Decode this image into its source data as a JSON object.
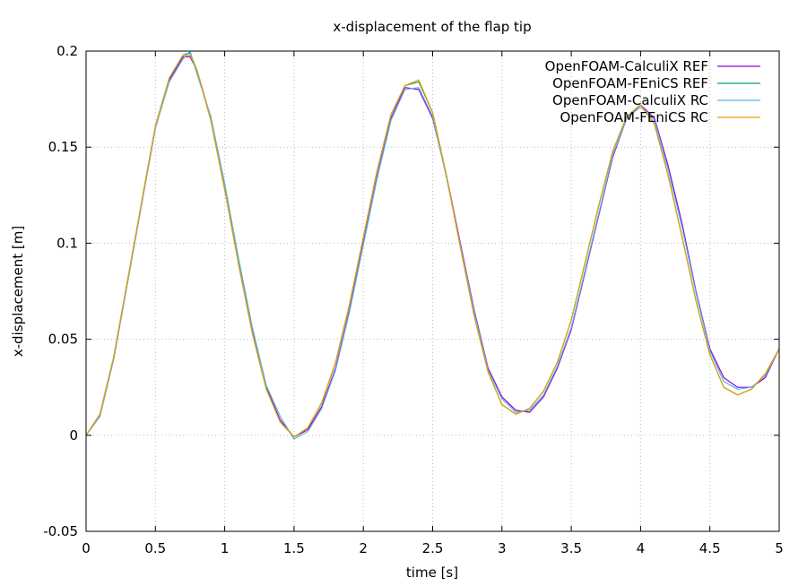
{
  "chart_data": {
    "type": "line",
    "title": "x-displacement of the flap tip",
    "xlabel": "time [s]",
    "ylabel": "x-displacement [m]",
    "xlim": [
      0,
      5
    ],
    "ylim": [
      -0.05,
      0.2
    ],
    "xticks": [
      0,
      0.5,
      1,
      1.5,
      2,
      2.5,
      3,
      3.5,
      4,
      4.5,
      5
    ],
    "xtick_labels": [
      "0",
      "0.5",
      "1",
      "1.5",
      "2",
      "2.5",
      "3",
      "3.5",
      "4",
      "4.5",
      "5"
    ],
    "yticks": [
      -0.05,
      0,
      0.05,
      0.1,
      0.15,
      0.2
    ],
    "ytick_labels": [
      "-0.05",
      "0",
      "0.05",
      "0.1",
      "0.15",
      "0.2"
    ],
    "grid": true,
    "legend_position": "top-right",
    "series": [
      {
        "name": "OpenFOAM-CalculiX REF",
        "color": "#9400d3",
        "x": [
          0,
          0.1,
          0.2,
          0.3,
          0.4,
          0.5,
          0.6,
          0.7,
          0.75,
          0.8,
          0.9,
          1.0,
          1.1,
          1.2,
          1.3,
          1.4,
          1.5,
          1.6,
          1.7,
          1.8,
          1.9,
          2.0,
          2.1,
          2.2,
          2.3,
          2.4,
          2.5,
          2.6,
          2.7,
          2.8,
          2.9,
          3.0,
          3.1,
          3.2,
          3.3,
          3.4,
          3.5,
          3.6,
          3.7,
          3.8,
          3.9,
          4.0,
          4.1,
          4.2,
          4.3,
          4.4,
          4.5,
          4.6,
          4.7,
          4.8,
          4.9,
          5.0
        ],
        "y": [
          0.0,
          0.01,
          0.04,
          0.08,
          0.12,
          0.16,
          0.185,
          0.197,
          0.197,
          0.19,
          0.165,
          0.13,
          0.09,
          0.055,
          0.025,
          0.008,
          -0.001,
          0.003,
          0.015,
          0.035,
          0.065,
          0.1,
          0.135,
          0.165,
          0.181,
          0.18,
          0.165,
          0.135,
          0.1,
          0.065,
          0.035,
          0.02,
          0.013,
          0.012,
          0.02,
          0.035,
          0.055,
          0.085,
          0.115,
          0.145,
          0.165,
          0.172,
          0.165,
          0.14,
          0.11,
          0.075,
          0.045,
          0.03,
          0.025,
          0.025,
          0.03,
          0.045
        ]
      },
      {
        "name": "OpenFOAM-FEniCS REF",
        "color": "#009e73",
        "x": [
          0,
          0.1,
          0.2,
          0.3,
          0.4,
          0.5,
          0.6,
          0.7,
          0.75,
          0.8,
          0.9,
          1.0,
          1.1,
          1.2,
          1.3,
          1.4,
          1.5,
          1.6,
          1.7,
          1.8,
          1.9,
          2.0,
          2.1,
          2.2,
          2.3,
          2.4,
          2.5,
          2.6,
          2.7,
          2.8,
          2.9,
          3.0,
          3.1,
          3.2,
          3.3,
          3.4,
          3.5,
          3.6,
          3.7,
          3.8,
          3.9,
          4.0,
          4.1,
          4.2,
          4.3,
          4.4,
          4.5,
          4.6,
          4.7,
          4.8,
          4.9,
          5.0
        ],
        "y": [
          0.0,
          0.011,
          0.041,
          0.081,
          0.121,
          0.161,
          0.186,
          0.198,
          0.199,
          0.19,
          0.164,
          0.128,
          0.089,
          0.053,
          0.024,
          0.007,
          -0.001,
          0.004,
          0.017,
          0.038,
          0.068,
          0.103,
          0.138,
          0.167,
          0.182,
          0.184,
          0.168,
          0.135,
          0.098,
          0.062,
          0.033,
          0.016,
          0.011,
          0.014,
          0.023,
          0.038,
          0.06,
          0.09,
          0.12,
          0.148,
          0.166,
          0.172,
          0.162,
          0.135,
          0.103,
          0.07,
          0.042,
          0.025,
          0.021,
          0.024,
          0.032,
          0.045
        ]
      },
      {
        "name": "OpenFOAM-CalculiX RC",
        "color": "#56b4e9",
        "x": [
          0,
          0.1,
          0.2,
          0.3,
          0.4,
          0.5,
          0.6,
          0.7,
          0.75,
          0.8,
          0.9,
          1.0,
          1.1,
          1.2,
          1.3,
          1.4,
          1.5,
          1.6,
          1.7,
          1.8,
          1.9,
          2.0,
          2.1,
          2.2,
          2.3,
          2.4,
          2.5,
          2.6,
          2.7,
          2.8,
          2.9,
          3.0,
          3.1,
          3.2,
          3.3,
          3.4,
          3.5,
          3.6,
          3.7,
          3.8,
          3.9,
          4.0,
          4.1,
          4.2,
          4.3,
          4.4,
          4.5,
          4.6,
          4.7,
          4.8,
          4.9,
          5.0
        ],
        "y": [
          0.0,
          0.01,
          0.04,
          0.08,
          0.12,
          0.16,
          0.184,
          0.196,
          0.2,
          0.188,
          0.166,
          0.131,
          0.092,
          0.056,
          0.026,
          0.01,
          -0.002,
          0.002,
          0.014,
          0.034,
          0.064,
          0.099,
          0.134,
          0.164,
          0.18,
          0.181,
          0.166,
          0.134,
          0.099,
          0.064,
          0.034,
          0.019,
          0.012,
          0.013,
          0.021,
          0.036,
          0.056,
          0.086,
          0.116,
          0.146,
          0.165,
          0.171,
          0.164,
          0.138,
          0.108,
          0.074,
          0.044,
          0.028,
          0.024,
          0.025,
          0.031,
          0.045
        ]
      },
      {
        "name": "OpenFOAM-FEniCS RC",
        "color": "#e69f00",
        "x": [
          0,
          0.1,
          0.2,
          0.3,
          0.4,
          0.5,
          0.6,
          0.7,
          0.75,
          0.8,
          0.9,
          1.0,
          1.1,
          1.2,
          1.3,
          1.4,
          1.5,
          1.6,
          1.7,
          1.8,
          1.9,
          2.0,
          2.1,
          2.2,
          2.3,
          2.4,
          2.5,
          2.6,
          2.7,
          2.8,
          2.9,
          3.0,
          3.1,
          3.2,
          3.3,
          3.4,
          3.5,
          3.6,
          3.7,
          3.8,
          3.9,
          4.0,
          4.1,
          4.2,
          4.3,
          4.4,
          4.5,
          4.6,
          4.7,
          4.8,
          4.9,
          5.0
        ],
        "y": [
          0.0,
          0.011,
          0.041,
          0.081,
          0.121,
          0.161,
          0.186,
          0.198,
          0.198,
          0.19,
          0.164,
          0.128,
          0.089,
          0.053,
          0.024,
          0.007,
          -0.001,
          0.004,
          0.017,
          0.038,
          0.068,
          0.103,
          0.138,
          0.167,
          0.182,
          0.185,
          0.168,
          0.135,
          0.098,
          0.062,
          0.033,
          0.016,
          0.011,
          0.014,
          0.023,
          0.038,
          0.06,
          0.09,
          0.12,
          0.148,
          0.166,
          0.172,
          0.162,
          0.135,
          0.103,
          0.07,
          0.042,
          0.025,
          0.021,
          0.024,
          0.032,
          0.045
        ]
      }
    ]
  }
}
